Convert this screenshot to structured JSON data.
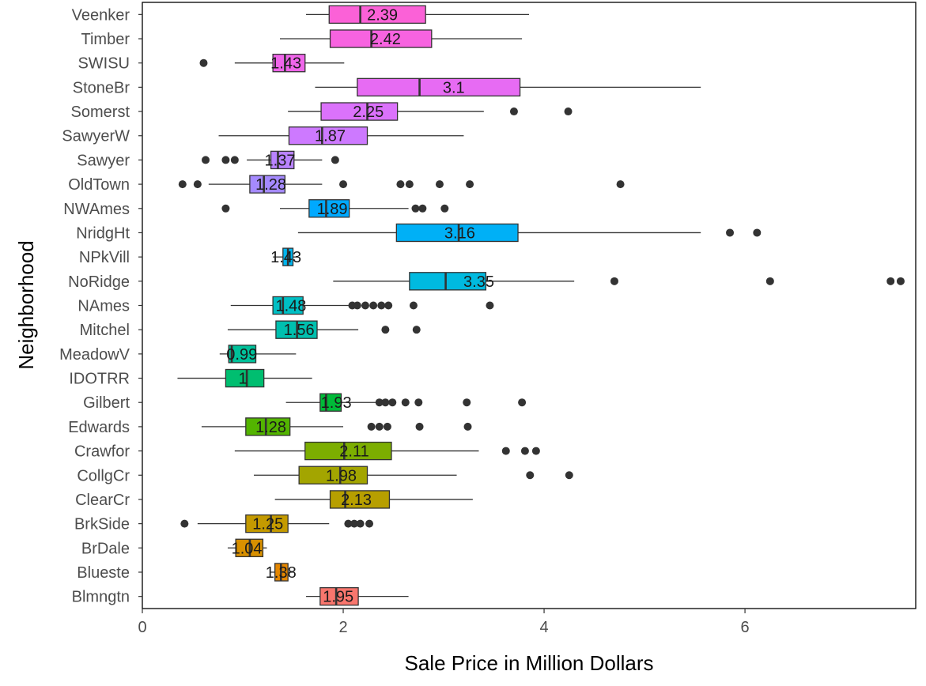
{
  "chart_data": {
    "type": "boxplot",
    "orientation": "horizontal",
    "title": "",
    "xlabel": "Sale Price in Million Dollars",
    "ylabel": "Neighborhood",
    "xlim": [
      0,
      7.7
    ],
    "xticks": [
      0,
      2,
      4,
      6
    ],
    "grid": false,
    "legend": "none",
    "series": [
      {
        "name": "Veenker",
        "color": "#fb61d7",
        "min": 1.63,
        "q1": 1.86,
        "median": 2.17,
        "q3": 2.82,
        "max": 3.85,
        "outliers": [],
        "label": "2.39"
      },
      {
        "name": "Timber",
        "color": "#f763e0",
        "min": 1.37,
        "q1": 1.87,
        "median": 2.28,
        "q3": 2.88,
        "max": 3.78,
        "outliers": [],
        "label": "2.42"
      },
      {
        "name": "SWISU",
        "color": "#f066ea",
        "min": 0.92,
        "q1": 1.3,
        "median": 1.42,
        "q3": 1.62,
        "max": 2.01,
        "outliers": [
          0.61
        ],
        "label": "1.43"
      },
      {
        "name": "StoneBr",
        "color": "#e76bf3",
        "min": 1.72,
        "q1": 2.14,
        "median": 2.76,
        "q3": 3.76,
        "max": 5.56,
        "outliers": [],
        "label": "3.1"
      },
      {
        "name": "Somerst",
        "color": "#db72fb",
        "min": 1.45,
        "q1": 1.78,
        "median": 2.24,
        "q3": 2.54,
        "max": 3.4,
        "outliers": [
          3.7,
          4.24
        ],
        "label": "2.25"
      },
      {
        "name": "SawyerW",
        "color": "#cd79ff",
        "min": 0.76,
        "q1": 1.46,
        "median": 1.79,
        "q3": 2.24,
        "max": 3.2,
        "outliers": [],
        "label": "1.87"
      },
      {
        "name": "Sawyer",
        "color": "#b983ff",
        "min": 1.04,
        "q1": 1.28,
        "median": 1.35,
        "q3": 1.51,
        "max": 1.79,
        "outliers": [
          0.63,
          0.83,
          0.92,
          1.92
        ],
        "label": "1.37"
      },
      {
        "name": "OldTown",
        "color": "#a58aff",
        "min": 0.66,
        "q1": 1.07,
        "median": 1.21,
        "q3": 1.42,
        "max": 1.79,
        "outliers": [
          0.4,
          0.55,
          2.0,
          2.57,
          2.66,
          2.96,
          3.26,
          4.76
        ],
        "label": "1.28"
      },
      {
        "name": "NWAmes",
        "color": "#00a9ff",
        "min": 1.37,
        "q1": 1.66,
        "median": 1.83,
        "q3": 2.06,
        "max": 2.65,
        "outliers": [
          0.83,
          2.72,
          2.79,
          3.01
        ],
        "label": "1.89"
      },
      {
        "name": "NridgHt",
        "color": "#00b0f6",
        "min": 1.55,
        "q1": 2.53,
        "median": 3.15,
        "q3": 3.74,
        "max": 5.56,
        "outliers": [
          5.85,
          6.12
        ],
        "label": "3.16"
      },
      {
        "name": "NPkVill",
        "color": "#00b5ee",
        "min": 1.3,
        "q1": 1.4,
        "median": 1.45,
        "q3": 1.5,
        "max": 1.55,
        "outliers": [],
        "label": "1.43"
      },
      {
        "name": "NoRidge",
        "color": "#00bae0",
        "min": 1.9,
        "q1": 2.66,
        "median": 3.02,
        "q3": 3.42,
        "max": 4.3,
        "outliers": [
          4.7,
          6.25,
          7.45,
          7.55
        ],
        "label": "3.35"
      },
      {
        "name": "NAmes",
        "color": "#00bfc4",
        "min": 0.88,
        "q1": 1.3,
        "median": 1.4,
        "q3": 1.6,
        "max": 2.08,
        "outliers": [
          2.09,
          2.14,
          2.22,
          2.3,
          2.38,
          2.45,
          2.7,
          3.46
        ],
        "label": "1.48"
      },
      {
        "name": "Mitchel",
        "color": "#00c0af",
        "min": 0.85,
        "q1": 1.33,
        "median": 1.54,
        "q3": 1.74,
        "max": 2.15,
        "outliers": [
          2.42,
          2.73
        ],
        "label": "1.56"
      },
      {
        "name": "MeadowV",
        "color": "#00c19a",
        "min": 0.77,
        "q1": 0.86,
        "median": 0.89,
        "q3": 1.13,
        "max": 1.53,
        "outliers": [],
        "label": "0.99"
      },
      {
        "name": "IDOTRR",
        "color": "#00be70",
        "min": 0.35,
        "q1": 0.83,
        "median": 1.04,
        "q3": 1.21,
        "max": 1.69,
        "outliers": [],
        "label": "1"
      },
      {
        "name": "Gilbert",
        "color": "#00ba38",
        "min": 1.43,
        "q1": 1.77,
        "median": 1.83,
        "q3": 1.98,
        "max": 2.36,
        "outliers": [
          2.36,
          2.42,
          2.49,
          2.62,
          2.75,
          3.23,
          3.78
        ],
        "label": "1.93"
      },
      {
        "name": "Edwards",
        "color": "#53b400",
        "min": 0.59,
        "q1": 1.03,
        "median": 1.23,
        "q3": 1.47,
        "max": 2.0,
        "outliers": [
          2.28,
          2.36,
          2.44,
          2.76,
          3.24
        ],
        "label": "1.28"
      },
      {
        "name": "Crawfor",
        "color": "#7cae00",
        "min": 0.92,
        "q1": 1.62,
        "median": 2.01,
        "q3": 2.48,
        "max": 3.35,
        "outliers": [
          3.62,
          3.81,
          3.92
        ],
        "label": "2.11"
      },
      {
        "name": "CollgCr",
        "color": "#a3a500",
        "min": 1.11,
        "q1": 1.56,
        "median": 1.97,
        "q3": 2.24,
        "max": 3.13,
        "outliers": [
          3.86,
          4.25
        ],
        "label": "1.98"
      },
      {
        "name": "ClearCr",
        "color": "#b79f00",
        "min": 1.32,
        "q1": 1.87,
        "median": 2.02,
        "q3": 2.46,
        "max": 3.29,
        "outliers": [],
        "label": "2.13"
      },
      {
        "name": "BrkSide",
        "color": "#c49a00",
        "min": 0.55,
        "q1": 1.03,
        "median": 1.28,
        "q3": 1.45,
        "max": 1.86,
        "outliers": [
          0.42,
          2.05,
          2.11,
          2.17,
          2.26
        ],
        "label": "1.25"
      },
      {
        "name": "BrDale",
        "color": "#d89000",
        "min": 0.85,
        "q1": 0.93,
        "median": 1.07,
        "q3": 1.2,
        "max": 1.24,
        "outliers": [],
        "label": "1.04"
      },
      {
        "name": "Blueste",
        "color": "#e58700",
        "min": 1.28,
        "q1": 1.32,
        "median": 1.38,
        "q3": 1.45,
        "max": 1.5,
        "outliers": [],
        "label": "1.38"
      },
      {
        "name": "Blmngtn",
        "color": "#f8766d",
        "min": 1.63,
        "q1": 1.77,
        "median": 1.93,
        "q3": 2.15,
        "max": 2.65,
        "outliers": [],
        "label": "1.95"
      }
    ]
  }
}
